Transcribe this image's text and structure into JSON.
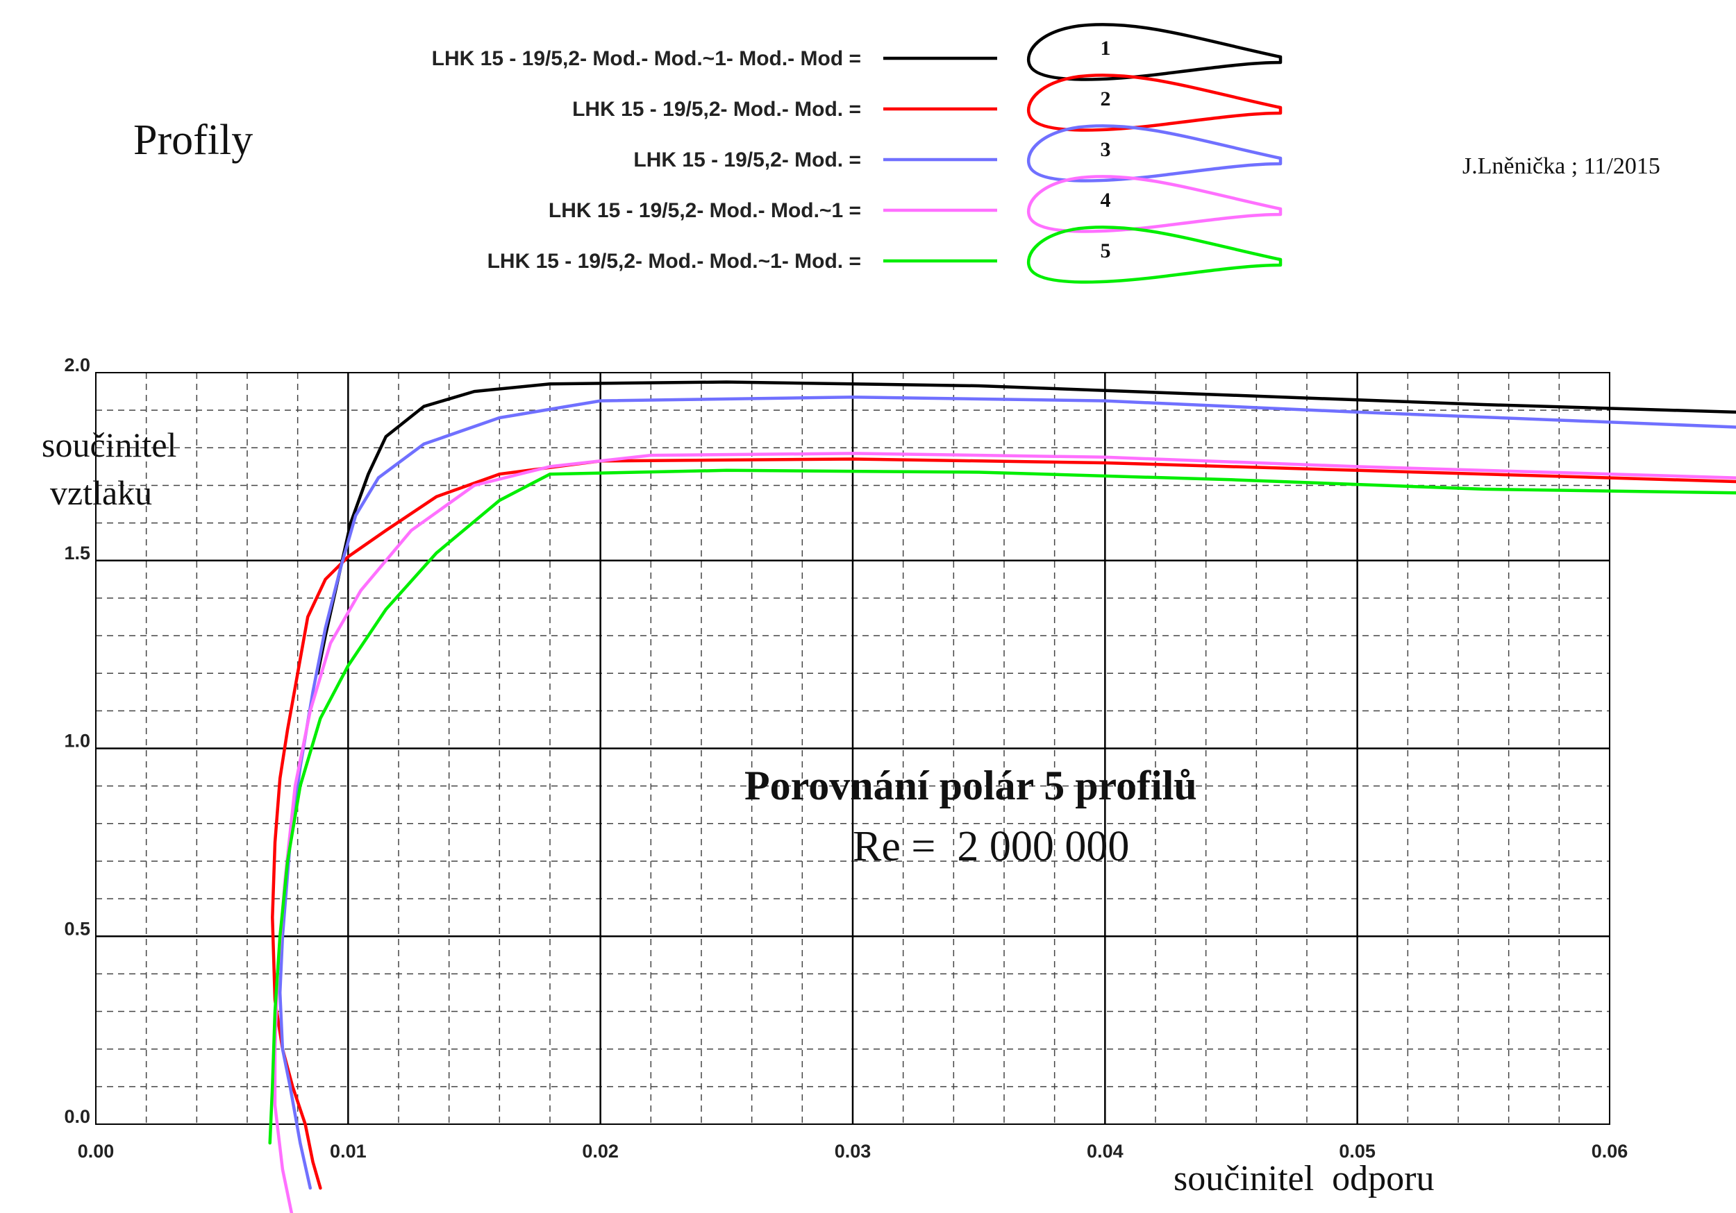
{
  "page": {
    "profily_label": "Profily",
    "author": "J.Lněnička ; 11/2015"
  },
  "legend": [
    {
      "label": "LHK 15 - 19/5,2- Mod.- Mod.~1- Mod.- Mod =",
      "number": "1",
      "color": "#000000"
    },
    {
      "label": "LHK 15 - 19/5,2- Mod.- Mod. =",
      "number": "2",
      "color": "#ff0000"
    },
    {
      "label": "LHK 15 - 19/5,2- Mod. =",
      "number": "3",
      "color": "#7070ff"
    },
    {
      "label": "LHK 15 - 19/5,2- Mod.- Mod.~1 =",
      "number": "4",
      "color": "#ff70ff"
    },
    {
      "label": "LHK 15 - 19/5,2- Mod.- Mod.~1- Mod. =",
      "number": "5",
      "color": "#00ee00"
    }
  ],
  "chart_data": {
    "type": "line",
    "title": "Porovnání polár 5 profilů",
    "subtitle": "Re =  2 000 000",
    "xlabel": "součinitel  odporu",
    "ylabel_line1": "součinitel",
    "ylabel_line2": "vztlaku",
    "xlim": [
      0,
      0.06
    ],
    "ylim": [
      0,
      2.0
    ],
    "x_ticks": [
      "0.00",
      "0.01",
      "0.02",
      "0.03",
      "0.04",
      "0.05",
      "0.06"
    ],
    "y_ticks": [
      "0.0",
      "0.5",
      "1.0",
      "1.5",
      "2.0"
    ],
    "grid": true,
    "series": [
      {
        "color": "#000000",
        "points": [
          [
            0.0088,
            1.2
          ],
          [
            0.0091,
            1.3
          ],
          [
            0.0096,
            1.45
          ],
          [
            0.0101,
            1.6
          ],
          [
            0.0108,
            1.73
          ],
          [
            0.0115,
            1.83
          ],
          [
            0.013,
            1.91
          ],
          [
            0.015,
            1.95
          ],
          [
            0.018,
            1.97
          ],
          [
            0.025,
            1.975
          ],
          [
            0.035,
            1.965
          ],
          [
            0.045,
            1.94
          ],
          [
            0.055,
            1.915
          ],
          [
            0.065,
            1.895
          ]
        ]
      },
      {
        "color": "#ff0000",
        "points": [
          [
            0.0089,
            -0.17
          ],
          [
            0.0086,
            -0.1
          ],
          [
            0.0083,
            0.0
          ],
          [
            0.0078,
            0.1
          ],
          [
            0.0074,
            0.2
          ],
          [
            0.0071,
            0.33
          ],
          [
            0.007,
            0.55
          ],
          [
            0.0071,
            0.75
          ],
          [
            0.0073,
            0.92
          ],
          [
            0.0076,
            1.05
          ],
          [
            0.008,
            1.2
          ],
          [
            0.0084,
            1.35
          ],
          [
            0.0091,
            1.45
          ],
          [
            0.01,
            1.51
          ],
          [
            0.0115,
            1.58
          ],
          [
            0.0135,
            1.67
          ],
          [
            0.016,
            1.73
          ],
          [
            0.02,
            1.765
          ],
          [
            0.03,
            1.77
          ],
          [
            0.04,
            1.76
          ],
          [
            0.05,
            1.74
          ],
          [
            0.065,
            1.71
          ]
        ]
      },
      {
        "color": "#7070ff",
        "points": [
          [
            0.0085,
            -0.17
          ],
          [
            0.0081,
            -0.05
          ],
          [
            0.0077,
            0.1
          ],
          [
            0.0074,
            0.2
          ],
          [
            0.0073,
            0.35
          ],
          [
            0.0074,
            0.5
          ],
          [
            0.0077,
            0.75
          ],
          [
            0.0081,
            0.95
          ],
          [
            0.0086,
            1.15
          ],
          [
            0.0091,
            1.32
          ],
          [
            0.0097,
            1.48
          ],
          [
            0.0103,
            1.62
          ],
          [
            0.0112,
            1.72
          ],
          [
            0.013,
            1.81
          ],
          [
            0.016,
            1.88
          ],
          [
            0.02,
            1.925
          ],
          [
            0.03,
            1.935
          ],
          [
            0.04,
            1.925
          ],
          [
            0.05,
            1.895
          ],
          [
            0.065,
            1.855
          ]
        ]
      },
      {
        "color": "#ff70ff",
        "points": [
          [
            0.0078,
            -0.25
          ],
          [
            0.0074,
            -0.12
          ],
          [
            0.0071,
            0.05
          ],
          [
            0.0071,
            0.2
          ],
          [
            0.0072,
            0.4
          ],
          [
            0.0075,
            0.65
          ],
          [
            0.0079,
            0.9
          ],
          [
            0.0085,
            1.1
          ],
          [
            0.0093,
            1.28
          ],
          [
            0.0105,
            1.42
          ],
          [
            0.0125,
            1.58
          ],
          [
            0.015,
            1.7
          ],
          [
            0.018,
            1.75
          ],
          [
            0.022,
            1.78
          ],
          [
            0.03,
            1.785
          ],
          [
            0.04,
            1.775
          ],
          [
            0.05,
            1.75
          ],
          [
            0.065,
            1.72
          ]
        ]
      },
      {
        "color": "#00ee00",
        "points": [
          [
            0.0069,
            -0.05
          ],
          [
            0.007,
            0.1
          ],
          [
            0.0071,
            0.3
          ],
          [
            0.0073,
            0.5
          ],
          [
            0.0076,
            0.7
          ],
          [
            0.0081,
            0.9
          ],
          [
            0.0089,
            1.08
          ],
          [
            0.01,
            1.22
          ],
          [
            0.0115,
            1.37
          ],
          [
            0.0135,
            1.52
          ],
          [
            0.016,
            1.66
          ],
          [
            0.018,
            1.73
          ],
          [
            0.025,
            1.74
          ],
          [
            0.035,
            1.735
          ],
          [
            0.045,
            1.715
          ],
          [
            0.055,
            1.69
          ],
          [
            0.065,
            1.68
          ]
        ]
      }
    ]
  }
}
